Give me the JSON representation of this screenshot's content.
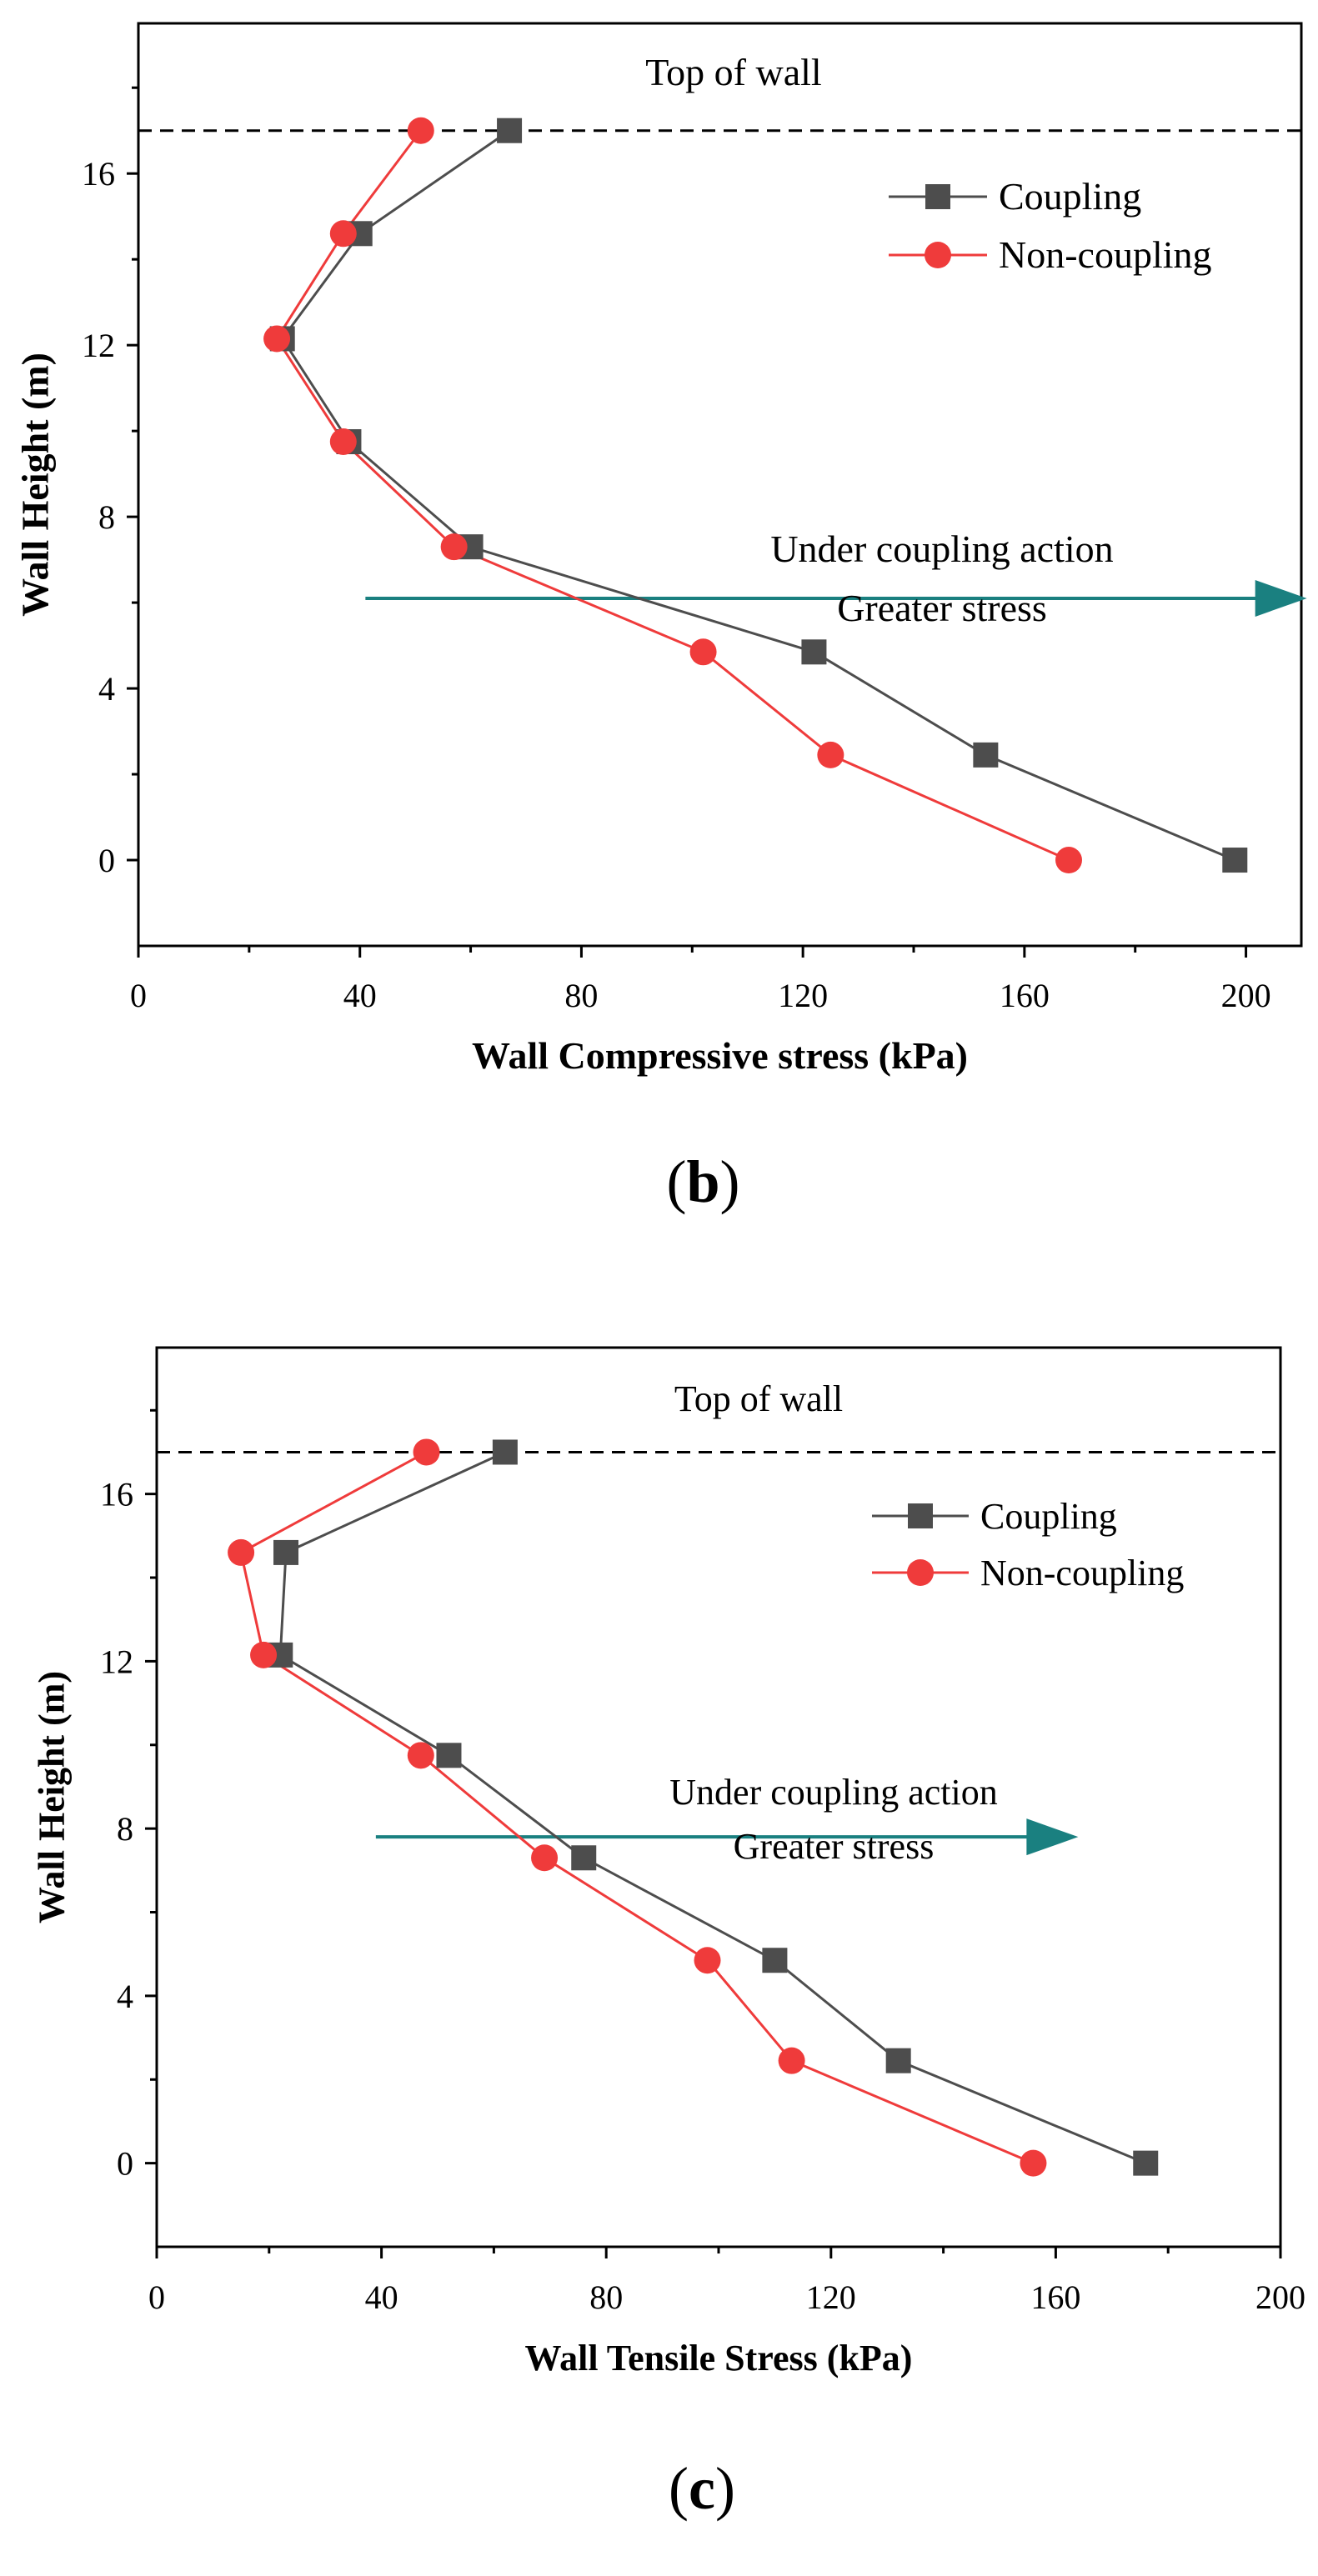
{
  "colors": {
    "coupling": "#4d4d4d",
    "non_coupling": "#ef3b3b",
    "arrow": "#1a8080",
    "reference_line": "#000000"
  },
  "chart_data": [
    {
      "type": "line",
      "panel_label": "(b)",
      "xlabel": "Wall Compressive stress (kPa)",
      "ylabel": "Wall Height (m)",
      "xlim": [
        0,
        210
      ],
      "ylim": [
        -2,
        19.5
      ],
      "xticks": [
        0,
        40,
        80,
        120,
        160,
        200
      ],
      "yticks": [
        0,
        4,
        8,
        12,
        16
      ],
      "grid": false,
      "legend_position": "top-right",
      "reference_line": {
        "y": 17,
        "label": "Top of wall"
      },
      "annotation": {
        "line1": "Under coupling action",
        "line2": "Greater stress",
        "arrow_y": 6.1,
        "arrow_from_x": 41,
        "arrow_to_x": 211
      },
      "series": [
        {
          "name": "Coupling",
          "marker": "square",
          "points": [
            [
              198,
              0
            ],
            [
              153,
              2.45
            ],
            [
              122,
              4.85
            ],
            [
              60,
              7.3
            ],
            [
              38,
              9.75
            ],
            [
              26,
              12.15
            ],
            [
              40,
              14.6
            ],
            [
              67,
              17
            ]
          ]
        },
        {
          "name": "Non-coupling",
          "marker": "circle",
          "points": [
            [
              168,
              0
            ],
            [
              125,
              2.45
            ],
            [
              102,
              4.85
            ],
            [
              57,
              7.3
            ],
            [
              37,
              9.75
            ],
            [
              25,
              12.15
            ],
            [
              37,
              14.6
            ],
            [
              51,
              17
            ]
          ]
        }
      ]
    },
    {
      "type": "line",
      "panel_label": "(c)",
      "xlabel": "Wall Tensile Stress (kPa)",
      "ylabel": "Wall Height (m)",
      "xlim": [
        0,
        200
      ],
      "ylim": [
        -2,
        19.5
      ],
      "xticks": [
        0,
        40,
        80,
        120,
        160,
        200
      ],
      "yticks": [
        0,
        4,
        8,
        12,
        16
      ],
      "grid": false,
      "legend_position": "top-right",
      "reference_line": {
        "y": 17,
        "label": "Top of wall"
      },
      "annotation": {
        "line1": "Under coupling action",
        "line2": "Greater stress",
        "arrow_y": 7.8,
        "arrow_from_x": 39,
        "arrow_to_x": 164
      },
      "series": [
        {
          "name": "Coupling",
          "marker": "square",
          "points": [
            [
              176,
              0
            ],
            [
              132,
              2.45
            ],
            [
              110,
              4.85
            ],
            [
              76,
              7.3
            ],
            [
              52,
              9.75
            ],
            [
              22,
              12.15
            ],
            [
              23,
              14.6
            ],
            [
              62,
              17
            ]
          ]
        },
        {
          "name": "Non-coupling",
          "marker": "circle",
          "points": [
            [
              156,
              0
            ],
            [
              113,
              2.45
            ],
            [
              98,
              4.85
            ],
            [
              69,
              7.3
            ],
            [
              47,
              9.75
            ],
            [
              19,
              12.15
            ],
            [
              15,
              14.6
            ],
            [
              48,
              17
            ]
          ]
        }
      ]
    }
  ]
}
